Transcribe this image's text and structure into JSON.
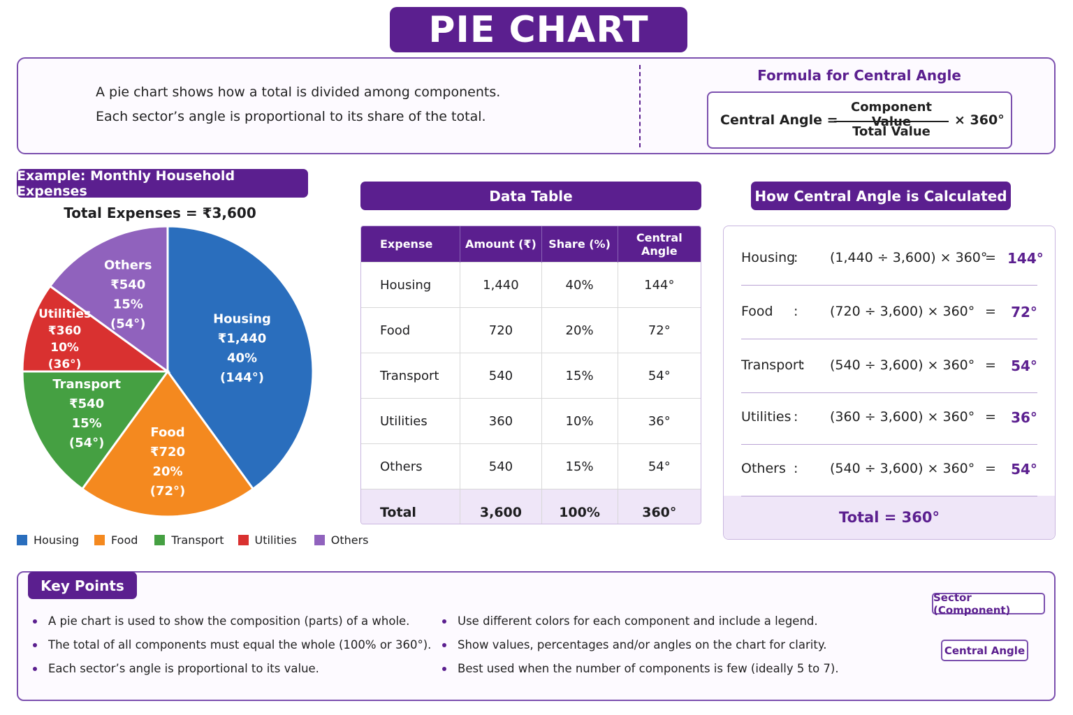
{
  "title": "PIE CHART",
  "intro": {
    "line1": "A pie chart shows how a total is divided among components.",
    "line2": "Each sector’s angle is proportional to its share of the total.",
    "formula_heading": "Formula for Central Angle",
    "formula_lhs": "Central Angle =",
    "formula_numerator": "Component Value",
    "formula_denominator": "Total Value",
    "formula_multiplier": "× 360°"
  },
  "example": {
    "heading": "Example: Monthly Household Expenses",
    "total_label": "Total Expenses = ₹3,600"
  },
  "chart_data": {
    "type": "pie",
    "title": "Example: Monthly Household Expenses",
    "categories": [
      "Housing",
      "Food",
      "Transport",
      "Utilities",
      "Others"
    ],
    "values": [
      1440,
      720,
      540,
      360,
      540
    ],
    "percent": [
      40,
      20,
      15,
      10,
      15
    ],
    "angles": [
      144,
      72,
      54,
      36,
      54
    ],
    "colors": [
      "#2a6ebd",
      "#f4891f",
      "#45a042",
      "#d93130",
      "#9062bd"
    ],
    "slice_labels": [
      [
        "Housing",
        "₹1,440",
        "40%",
        "(144°)"
      ],
      [
        "Food",
        "₹720",
        "20%",
        "(72°)"
      ],
      [
        "Transport",
        "₹540",
        "15%",
        "(54°)"
      ],
      [
        "Utilities",
        "₹360",
        "10%",
        "(36°)"
      ],
      [
        "Others",
        "₹540",
        "15%",
        "(54°)"
      ]
    ],
    "legend": [
      "Housing",
      "Food",
      "Transport",
      "Utilities",
      "Others"
    ],
    "legend_position": "bottom"
  },
  "data_table": {
    "heading": "Data Table",
    "columns": [
      "Expense",
      "Amount (₹)",
      "Share (%)",
      "Central Angle"
    ],
    "rows": [
      [
        "Housing",
        "1,440",
        "40%",
        "144°"
      ],
      [
        "Food",
        "720",
        "20%",
        "72°"
      ],
      [
        "Transport",
        "540",
        "15%",
        "54°"
      ],
      [
        "Utilities",
        "360",
        "10%",
        "36°"
      ],
      [
        "Others",
        "540",
        "15%",
        "54°"
      ]
    ],
    "total": [
      "Total",
      "3,600",
      "100%",
      "360°"
    ]
  },
  "calc": {
    "heading": "How Central Angle is Calculated",
    "rows": [
      {
        "label": "Housing",
        "colon": ":",
        "expr": "(1,440 ÷ 3,600) × 360°",
        "eq": "=",
        "result": "144°"
      },
      {
        "label": "Food",
        "colon": ":",
        "expr": "(720 ÷ 3,600) × 360°",
        "eq": "=",
        "result": "72°"
      },
      {
        "label": "Transport",
        "colon": ":",
        "expr": "(540 ÷ 3,600) × 360°",
        "eq": "=",
        "result": "54°"
      },
      {
        "label": "Utilities",
        "colon": ":",
        "expr": "(360 ÷ 3,600) × 360°",
        "eq": "=",
        "result": "36°"
      },
      {
        "label": "Others",
        "colon": ":",
        "expr": "(540 ÷ 3,600) × 360°",
        "eq": "=",
        "result": "54°"
      }
    ],
    "total": "Total = 360°"
  },
  "key_points": {
    "heading": "Key Points",
    "left": [
      "A pie chart is used to show the composition (parts) of a whole.",
      "The total of all components must equal the whole (100% or 360°).",
      "Each sector’s angle is proportional to its value."
    ],
    "right": [
      "Use different colors for each component and include a legend.",
      "Show values, percentages and/or angles on the chart for clarity.",
      "Best used when the number of components is few (ideally 5 to 7)."
    ],
    "callout_sector": "Sector (Component)",
    "callout_angle": "Central Angle"
  }
}
